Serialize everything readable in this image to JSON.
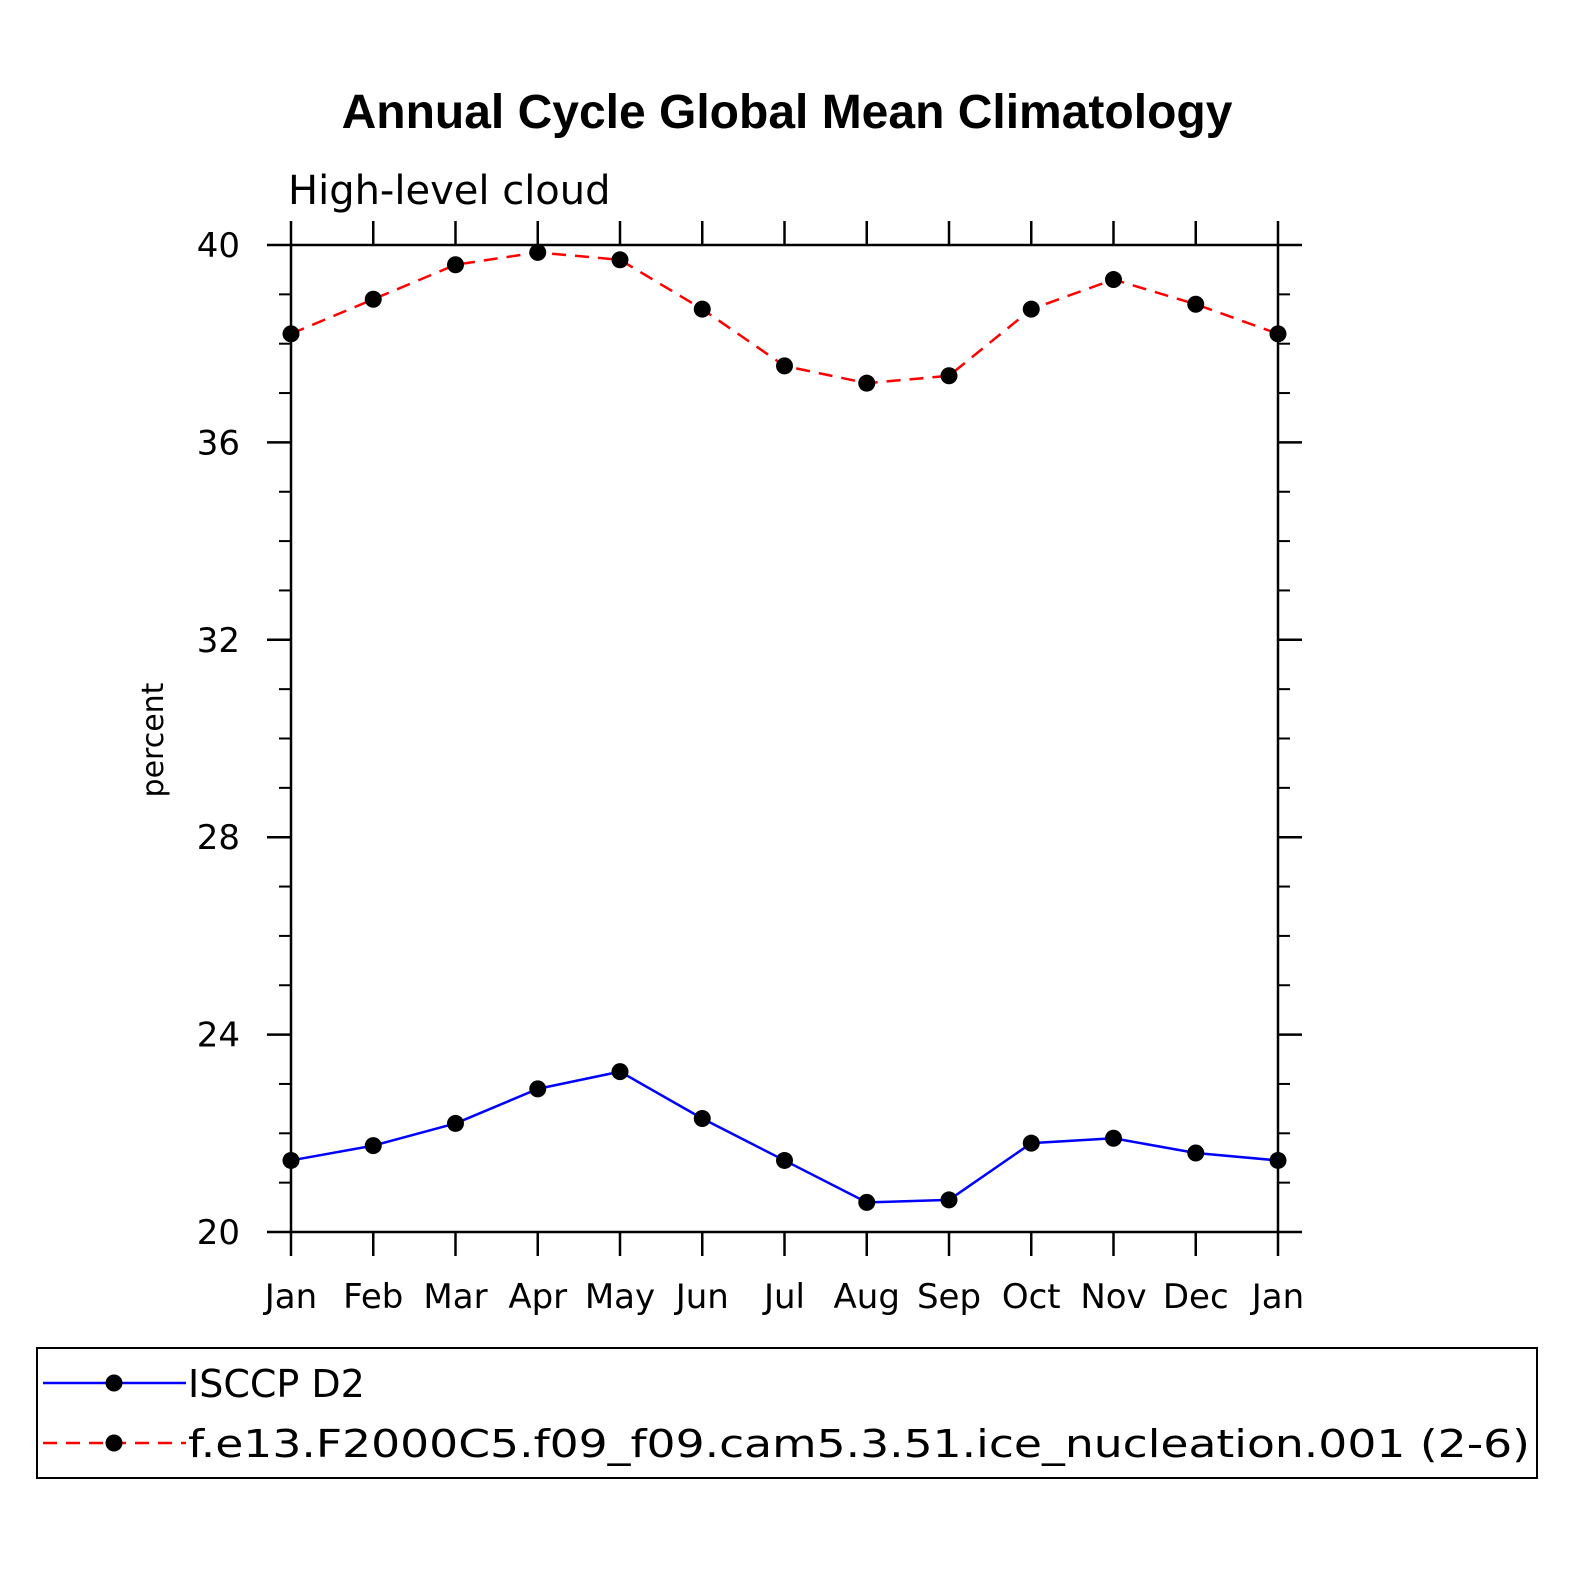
{
  "chart_data": {
    "type": "line",
    "title": "Annual Cycle Global Mean Climatology",
    "subtitle": "High-level cloud",
    "xlabel": "",
    "ylabel": "percent",
    "categories": [
      "Jan",
      "Feb",
      "Mar",
      "Apr",
      "May",
      "Jun",
      "Jul",
      "Aug",
      "Sep",
      "Oct",
      "Nov",
      "Dec",
      "Jan"
    ],
    "ylim": [
      20,
      40
    ],
    "yticks": [
      20,
      24,
      28,
      32,
      36,
      40
    ],
    "series": [
      {
        "name": "ISCCP D2",
        "color": "#0000ff",
        "dash": "solid",
        "values": [
          21.45,
          21.75,
          22.2,
          22.9,
          23.25,
          22.3,
          21.45,
          20.6,
          20.65,
          21.8,
          21.9,
          21.6,
          21.45
        ]
      },
      {
        "name": "f.e13.F2000C5.f09_f09.cam5.3.51.ice_nucleation.001 (2-6)",
        "color": "#ff0000",
        "dash": "dashed",
        "values": [
          38.2,
          38.9,
          39.6,
          39.85,
          39.7,
          38.7,
          37.55,
          37.2,
          37.35,
          38.7,
          39.3,
          38.8,
          38.2
        ]
      }
    ]
  }
}
